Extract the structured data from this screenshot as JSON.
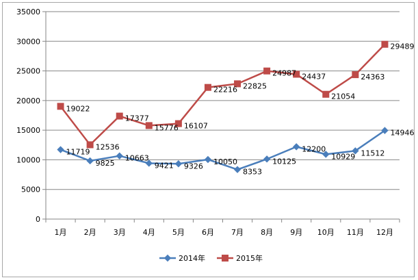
{
  "chart_data": {
    "type": "line",
    "title": "",
    "xlabel": "",
    "ylabel": "",
    "categories": [
      "1月",
      "2月",
      "3月",
      "4月",
      "5月",
      "6月",
      "7月",
      "8月",
      "9月",
      "10月",
      "11月",
      "12月"
    ],
    "ylim": [
      0,
      35000
    ],
    "yticks": [
      0,
      5000,
      10000,
      15000,
      20000,
      25000,
      30000,
      35000
    ],
    "grid": true,
    "legend_position": "bottom",
    "series": [
      {
        "name": "2014年",
        "marker": "diamond",
        "color": "#4a7ebb",
        "values": [
          11719,
          9825,
          10663,
          9421,
          9326,
          10050,
          8353,
          10125,
          12200,
          10929,
          11512,
          14946
        ]
      },
      {
        "name": "2015年",
        "marker": "square",
        "color": "#be4b48",
        "values": [
          19022,
          12536,
          17377,
          15776,
          16107,
          22216,
          22825,
          24987,
          24437,
          21054,
          24363,
          29489
        ]
      }
    ]
  }
}
